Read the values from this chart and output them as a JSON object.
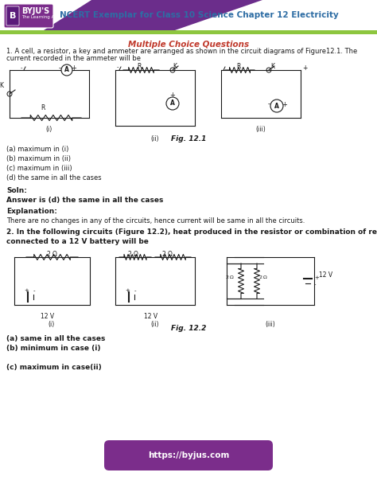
{
  "title": "NCERT Exemplar for Class 10 Science Chapter 12 Electricity",
  "title_color": "#2e6da4",
  "header_purple": "#6b2d8b",
  "header_green": "#8dc63f",
  "byju_box_color": "#7b2d8b",
  "section_title": "Multiple Choice Questions",
  "section_title_color": "#c0392b",
  "q1_line1": "1. A cell, a resistor, a key and ammeter are arranged as shown in the circuit diagrams of Figure12.1. The",
  "q1_line2": "current recorded in the ammeter will be",
  "q1_options": [
    "(a) maximum in (i)",
    "(b) maximum in (ii)",
    "(c) maximum in (iii)",
    "(d) the same in all the cases"
  ],
  "soln_label": "Soln:",
  "answer1": "Answer is (d) the same in all the cases",
  "explanation_label": "Explanation:",
  "explanation_text": "There are no changes in any of the circuits, hence current will be same in all the circuits.",
  "q2_line1": "2. In the following circuits (Figure 12.2), heat produced in the resistor or combination of resistors",
  "q2_line2": "connected to a 12 V battery will be",
  "q2_options_a": "(a) same in all the cases",
  "q2_options_b": "(b) minimum in case (i)",
  "q2_options_c": "(c) maximum in case(ii)",
  "fig1_label": "Fig. 12.1",
  "fig2_label": "Fig. 12.2",
  "footer_text": "https://byjus.com",
  "footer_bg": "#7b2d8b",
  "footer_text_color": "#ffffff",
  "body_bg": "#ffffff",
  "cc": "#1a1a1a",
  "dpi": 100,
  "fig_w": 4.74,
  "fig_h": 6.13
}
